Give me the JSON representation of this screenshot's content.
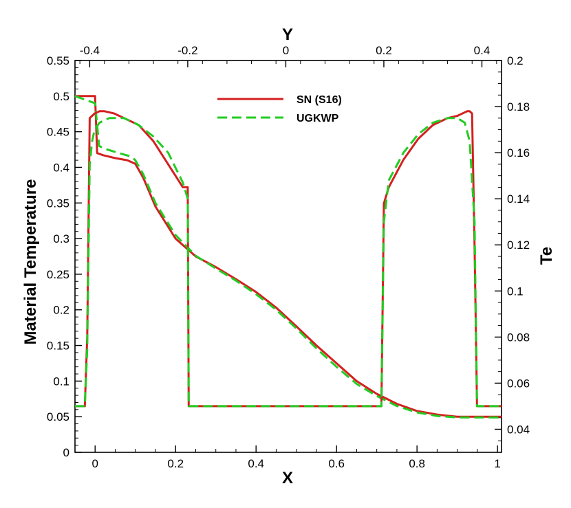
{
  "chart_data": {
    "type": "line",
    "title": "",
    "xlabel": "X",
    "ylabel": "Material Temperature",
    "x2label": "Y",
    "y2label": "Te",
    "xlim": [
      -0.05,
      1.01
    ],
    "ylim": [
      0,
      0.55
    ],
    "x2lim": [
      -0.43,
      0.44
    ],
    "y2lim": [
      0.03,
      0.2
    ],
    "x_ticks": [
      0,
      0.2,
      0.4,
      0.6,
      0.8,
      1
    ],
    "x_tick_labels": [
      "0",
      "0.2",
      "0.4",
      "0.6",
      "0.8",
      "1"
    ],
    "y_ticks": [
      0,
      0.05,
      0.1,
      0.15,
      0.2,
      0.25,
      0.3,
      0.35,
      0.4,
      0.45,
      0.5,
      0.55
    ],
    "y_tick_labels": [
      "0",
      "0.05",
      "0.1",
      "0.15",
      "0.2",
      "0.25",
      "0.3",
      "0.35",
      "0.4",
      "0.45",
      "0.5",
      "0.55"
    ],
    "x2_ticks": [
      -0.4,
      -0.2,
      0,
      0.2,
      0.4
    ],
    "x2_tick_labels": [
      "-0.4",
      "-0.2",
      "0",
      "0.2",
      "0.4"
    ],
    "y2_ticks": [
      0.04,
      0.06,
      0.08,
      0.1,
      0.12,
      0.14,
      0.16,
      0.18,
      0.2
    ],
    "y2_tick_labels": [
      "0.04",
      "0.06",
      "0.08",
      "0.1",
      "0.12",
      "0.14",
      "0.16",
      "0.18",
      "0.2"
    ],
    "grid": false,
    "legend_position": "top-center",
    "series": [
      {
        "name": "SN (S16)",
        "color": "#d42020",
        "dash": "solid",
        "axes": "x-y",
        "x": [
          -0.05,
          0.0,
          0.005,
          0.02,
          0.05,
          0.08,
          0.1,
          0.12,
          0.15,
          0.2,
          0.25,
          0.3,
          0.35,
          0.4,
          0.45,
          0.5,
          0.55,
          0.6,
          0.65,
          0.7,
          0.75,
          0.8,
          0.85,
          0.9,
          0.95,
          1.01
        ],
        "y": [
          0.5,
          0.5,
          0.42,
          0.417,
          0.413,
          0.41,
          0.405,
          0.385,
          0.345,
          0.3,
          0.275,
          0.26,
          0.243,
          0.225,
          0.203,
          0.177,
          0.15,
          0.125,
          0.1,
          0.082,
          0.068,
          0.058,
          0.053,
          0.05,
          0.05,
          0.05
        ]
      },
      {
        "name": "UGKWP",
        "color": "#22cc22",
        "dash": "dashed",
        "axes": "x-y",
        "x": [
          -0.05,
          0.0,
          0.01,
          0.03,
          0.06,
          0.09,
          0.1,
          0.12,
          0.15,
          0.2,
          0.25,
          0.3,
          0.35,
          0.4,
          0.45,
          0.5,
          0.55,
          0.6,
          0.65,
          0.7,
          0.75,
          0.8,
          0.85,
          0.9,
          0.95,
          1.01
        ],
        "y": [
          0.5,
          0.49,
          0.43,
          0.425,
          0.42,
          0.415,
          0.41,
          0.39,
          0.35,
          0.305,
          0.276,
          0.258,
          0.241,
          0.222,
          0.2,
          0.174,
          0.146,
          0.12,
          0.096,
          0.079,
          0.065,
          0.056,
          0.051,
          0.049,
          0.049,
          0.049
        ]
      },
      {
        "name": "SN (S16)",
        "color": "#d42020",
        "dash": "solid",
        "axes": "x2-y2",
        "x": [
          -0.43,
          -0.41,
          -0.405,
          -0.4,
          -0.39,
          -0.38,
          -0.37,
          -0.35,
          -0.33,
          -0.3,
          -0.27,
          -0.24,
          -0.21,
          -0.2,
          -0.198,
          -0.15,
          0.0,
          0.15,
          0.195,
          0.2,
          0.21,
          0.24,
          0.27,
          0.3,
          0.33,
          0.35,
          0.37,
          0.375,
          0.38,
          0.385,
          0.39,
          0.44
        ],
        "y": [
          0.05,
          0.05,
          0.08,
          0.175,
          0.177,
          0.178,
          0.178,
          0.177,
          0.175,
          0.172,
          0.165,
          0.155,
          0.145,
          0.145,
          0.05,
          0.05,
          0.05,
          0.05,
          0.05,
          0.138,
          0.145,
          0.157,
          0.166,
          0.172,
          0.175,
          0.176,
          0.178,
          0.178,
          0.177,
          0.12,
          0.05,
          0.05
        ]
      },
      {
        "name": "UGKWP",
        "color": "#22cc22",
        "dash": "dashed",
        "axes": "x2-y2",
        "x": [
          -0.43,
          -0.41,
          -0.405,
          -0.4,
          -0.395,
          -0.39,
          -0.38,
          -0.36,
          -0.33,
          -0.3,
          -0.27,
          -0.24,
          -0.21,
          -0.2,
          -0.198,
          -0.15,
          0.0,
          0.15,
          0.195,
          0.2,
          0.21,
          0.24,
          0.27,
          0.3,
          0.33,
          0.35,
          0.365,
          0.375,
          0.385,
          0.39,
          0.44
        ],
        "y": [
          0.05,
          0.05,
          0.075,
          0.155,
          0.165,
          0.17,
          0.173,
          0.175,
          0.175,
          0.172,
          0.167,
          0.16,
          0.147,
          0.14,
          0.05,
          0.05,
          0.05,
          0.05,
          0.05,
          0.13,
          0.148,
          0.16,
          0.168,
          0.173,
          0.175,
          0.175,
          0.173,
          0.165,
          0.13,
          0.05,
          0.05
        ]
      }
    ]
  }
}
